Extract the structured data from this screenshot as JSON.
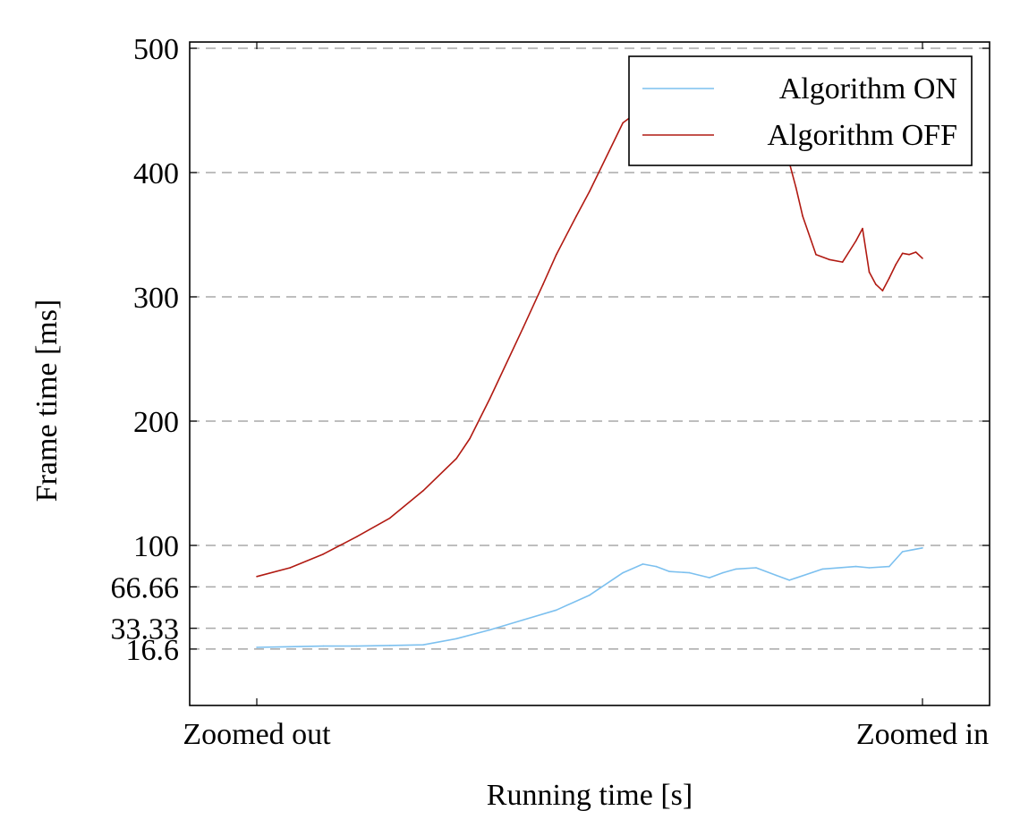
{
  "chart_data": {
    "type": "line",
    "title": "",
    "xlabel": "Running time [s]",
    "ylabel": "Frame time [ms]",
    "xlim": [
      0,
      100
    ],
    "ylim": [
      0,
      500
    ],
    "x_ticks": [
      {
        "value": 0,
        "label": "Zoomed out"
      },
      {
        "value": 100,
        "label": "Zoomed in"
      }
    ],
    "y_ticks": [
      {
        "value": 16.6,
        "label": "16.6"
      },
      {
        "value": 33.33,
        "label": "33.33"
      },
      {
        "value": 66.66,
        "label": "66.66"
      },
      {
        "value": 100,
        "label": "100"
      },
      {
        "value": 200,
        "label": "200"
      },
      {
        "value": 300,
        "label": "300"
      },
      {
        "value": 400,
        "label": "400"
      },
      {
        "value": 500,
        "label": "500"
      }
    ],
    "grid": "horizontal dashed at y ticks",
    "legend_position": "top-right",
    "series": [
      {
        "name": "Algorithm ON",
        "color": "#7cc0ef",
        "x": [
          0,
          5,
          10,
          15,
          20,
          25,
          30,
          35,
          40,
          45,
          50,
          55,
          58,
          60,
          62,
          65,
          68,
          70,
          72,
          75,
          78,
          80,
          85,
          90,
          92,
          95,
          97,
          100
        ],
        "y": [
          18,
          18.5,
          19,
          19,
          19.5,
          20,
          25,
          32,
          40,
          48,
          60,
          78,
          85,
          83,
          79,
          78,
          74,
          78,
          81,
          82,
          76,
          72,
          81,
          83,
          82,
          83,
          95,
          98
        ]
      },
      {
        "name": "Algorithm OFF",
        "color": "#b11a12",
        "x": [
          0,
          5,
          10,
          15,
          20,
          25,
          30,
          32,
          35,
          40,
          43,
          45,
          48,
          50,
          55,
          57,
          60,
          62,
          65,
          68,
          72,
          75,
          77,
          80,
          81,
          82,
          84,
          86,
          88,
          90,
          91,
          92,
          93,
          94,
          95,
          96,
          97,
          98,
          99,
          100
        ],
        "y": [
          75,
          82,
          93,
          107,
          122,
          144,
          170,
          186,
          218,
          275,
          310,
          334,
          365,
          385,
          440,
          448,
          415,
          410,
          420,
          410,
          416,
          425,
          430,
          408,
          388,
          365,
          334,
          330,
          328,
          345,
          355,
          320,
          310,
          305,
          315,
          326,
          335,
          334,
          336,
          331
        ]
      }
    ]
  }
}
